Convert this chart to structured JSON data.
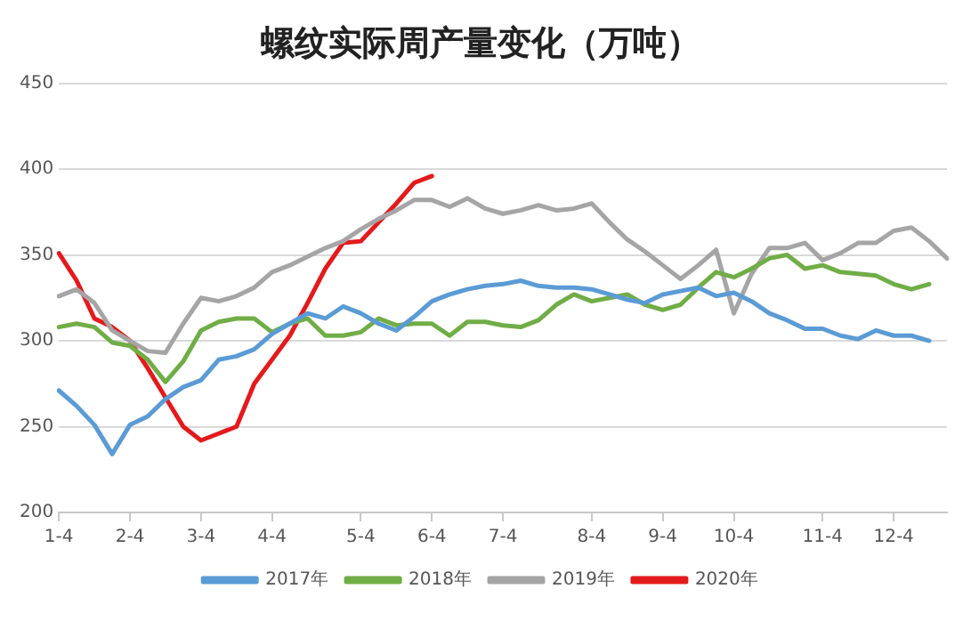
{
  "chart_data": {
    "type": "line",
    "title": "螺纹实际周产量变化（万吨）",
    "categories": [
      "1-4",
      null,
      null,
      null,
      "2-4",
      null,
      null,
      null,
      "3-4",
      null,
      null,
      null,
      "4-4",
      null,
      null,
      null,
      null,
      "5-4",
      null,
      null,
      null,
      "6-4",
      null,
      null,
      null,
      "7-4",
      null,
      null,
      null,
      null,
      "8-4",
      null,
      null,
      null,
      "9-4",
      null,
      null,
      null,
      "10-4",
      null,
      null,
      null,
      null,
      "11-4",
      null,
      null,
      null,
      "12-4",
      null,
      null,
      null
    ],
    "series": [
      {
        "name": "2017年",
        "color": "#5b9bd5",
        "values": [
          271,
          262,
          251,
          234,
          251,
          256,
          266,
          273,
          277,
          289,
          291,
          295,
          304,
          310,
          316,
          313,
          320,
          316,
          310,
          306,
          314,
          323,
          327,
          330,
          332,
          333,
          335,
          332,
          331,
          331,
          330,
          327,
          324,
          322,
          327,
          329,
          331,
          326,
          328,
          323,
          316,
          312,
          307,
          307,
          303,
          301,
          306,
          303,
          303,
          300,
          null
        ]
      },
      {
        "name": "2018年",
        "color": "#70ad47",
        "values": [
          308,
          310,
          308,
          299,
          297,
          289,
          276,
          288,
          306,
          311,
          313,
          313,
          305,
          310,
          313,
          303,
          303,
          305,
          313,
          309,
          310,
          310,
          303,
          311,
          311,
          309,
          308,
          312,
          321,
          327,
          323,
          325,
          327,
          321,
          318,
          321,
          331,
          340,
          337,
          342,
          348,
          350,
          342,
          344,
          340,
          339,
          338,
          333,
          330,
          333,
          null
        ]
      },
      {
        "name": "2019年",
        "color": "#a5a5a5",
        "values": [
          326,
          330,
          322,
          306,
          300,
          294,
          293,
          310,
          325,
          323,
          326,
          331,
          340,
          344,
          349,
          354,
          358,
          365,
          371,
          376,
          382,
          382,
          378,
          383,
          377,
          374,
          376,
          379,
          376,
          377,
          380,
          369,
          359,
          352,
          344,
          336,
          344,
          353,
          316,
          339,
          354,
          354,
          357,
          347,
          351,
          357,
          357,
          364,
          366,
          358,
          348
        ]
      },
      {
        "name": "2020年",
        "color": "#e31a1c",
        "values": [
          351,
          335,
          313,
          308,
          300,
          284,
          267,
          250,
          242,
          246,
          250,
          275,
          289,
          303,
          322,
          342,
          357,
          358,
          369,
          380,
          392,
          396,
          null,
          null,
          null,
          null,
          null,
          null,
          null,
          null,
          null,
          null,
          null,
          null,
          null,
          null,
          null,
          null,
          null,
          null,
          null,
          null,
          null,
          null,
          null,
          null,
          null,
          null,
          null,
          null,
          null
        ]
      }
    ],
    "ylim": [
      200,
      450
    ],
    "yticks": [
      200,
      250,
      300,
      350,
      400,
      450
    ],
    "grid": "y",
    "legend": "bottom",
    "marker": "none",
    "line_style": "solid"
  }
}
